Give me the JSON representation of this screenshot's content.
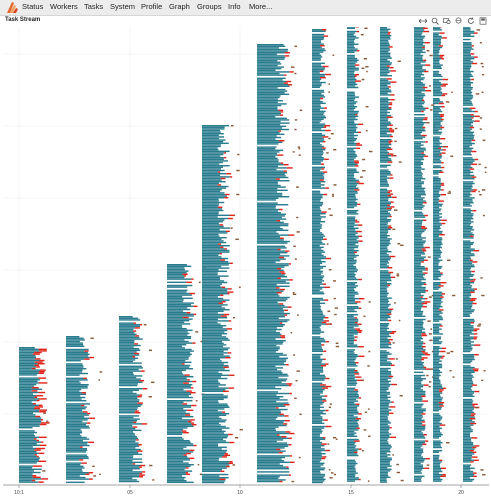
{
  "nav": {
    "items": [
      {
        "label": "Status"
      },
      {
        "label": "Workers"
      },
      {
        "label": "Tasks"
      },
      {
        "label": "System"
      },
      {
        "label": "Profile"
      },
      {
        "label": "Graph"
      },
      {
        "label": "Groups"
      },
      {
        "label": "Info"
      },
      {
        "label": "More..."
      }
    ]
  },
  "panel": {
    "title": "Task Stream"
  },
  "toolbar": {
    "tools": [
      {
        "icon": "pan-icon"
      },
      {
        "icon": "box-zoom-icon"
      },
      {
        "icon": "wheel-zoom-icon"
      },
      {
        "icon": "reset-icon"
      },
      {
        "icon": "save-icon"
      },
      {
        "icon": "hover-icon"
      }
    ]
  },
  "colors": {
    "task_teal": "#2a7d8f",
    "transfer_red": "#e0261b",
    "other_brown": "#8a5a3a",
    "grid": "#eeeeee"
  },
  "chart_data": {
    "type": "gantt",
    "x_tick_labels": [
      "10:1",
      "05",
      "10",
      "15",
      "20"
    ],
    "grid": true,
    "columns": [
      {
        "x0": 19,
        "x1": 42,
        "start": 347
      },
      {
        "x0": 66,
        "x1": 90,
        "start": 336
      },
      {
        "x0": 119,
        "x1": 143,
        "start": 316
      },
      {
        "x0": 167,
        "x1": 194,
        "start": 264
      },
      {
        "x0": 202,
        "x1": 230,
        "start": 125
      },
      {
        "x0": 257,
        "x1": 290,
        "start": 44
      },
      {
        "x0": 312,
        "x1": 326,
        "start": 29
      },
      {
        "x0": 347,
        "x1": 359,
        "start": 26
      },
      {
        "x0": 380,
        "x1": 392,
        "start": 27
      },
      {
        "x0": 414,
        "x1": 426,
        "start": 26
      },
      {
        "x0": 433,
        "x1": 443,
        "start": 26
      },
      {
        "x0": 463,
        "x1": 475,
        "start": 26
      }
    ]
  }
}
